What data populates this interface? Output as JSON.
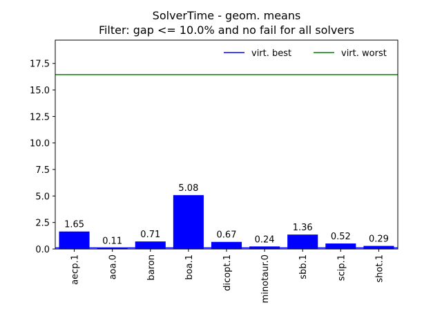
{
  "chart_data": {
    "type": "bar",
    "title": "SolverTime - geom. means",
    "subtitle": "Filter: gap <= 10.0% and no fail for all solvers",
    "xlabel": "",
    "ylabel": "",
    "categories": [
      "aecp.1",
      "aoa.0",
      "baron",
      "boa.1",
      "dicopt.1",
      "minotaur.0",
      "sbb.1",
      "scip.1",
      "shot.1"
    ],
    "values": [
      1.65,
      0.11,
      0.71,
      5.08,
      0.67,
      0.24,
      1.36,
      0.52,
      0.29
    ],
    "data_labels": [
      "1.65",
      "0.11",
      "0.71",
      "5.08",
      "0.67",
      "0.24",
      "1.36",
      "0.52",
      "0.29"
    ],
    "bar_color": "#0000ff",
    "ylim": [
      0,
      19.7
    ],
    "yticks": [
      0,
      2.5,
      5,
      7.5,
      10,
      12.5,
      15,
      17.5
    ],
    "ytick_labels": [
      "0.0",
      "2.5",
      "5.0",
      "7.5",
      "10.0",
      "12.5",
      "15.0",
      "17.5"
    ],
    "grid": false,
    "reference_lines": [
      {
        "name": "virt. best",
        "value": 0.11,
        "color": "#0000ff"
      },
      {
        "name": "virt. worst",
        "value": 16.45,
        "color": "#008000"
      }
    ],
    "legend_placement": "top-right"
  }
}
